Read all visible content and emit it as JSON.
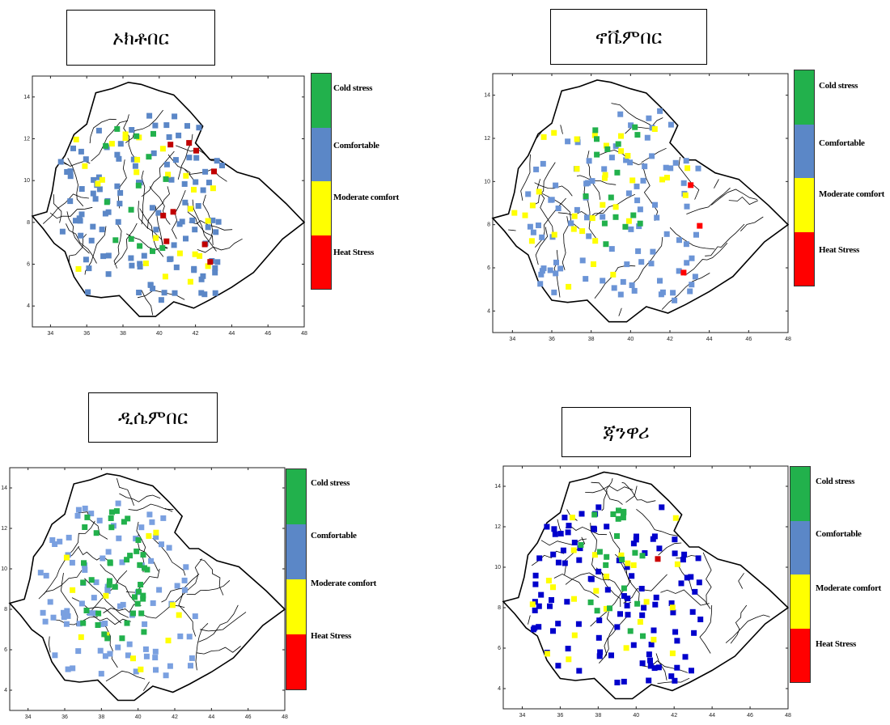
{
  "legend": {
    "items": [
      {
        "label": "Cold stress",
        "color": "#22b14c"
      },
      {
        "label": "Comfortable",
        "color": "#5b87c7"
      },
      {
        "label": "Moderate comfort",
        "color": "#ffff00"
      },
      {
        "label": "Heat Stress",
        "color": "#ff0000"
      }
    ]
  },
  "panels": [
    {
      "title": "ኦክቶበር",
      "stations": {
        "cold": 14,
        "comfortable": 110,
        "moderate": 26,
        "heat": 9,
        "heat_color": "#c00000",
        "comfortable_color": "#5b87c7"
      }
    },
    {
      "title": "ኖቬምበር",
      "stations": {
        "cold": 16,
        "comfortable": 95,
        "moderate": 34,
        "heat": 3,
        "heat_color": "#ff0000",
        "comfortable_color": "#6b94d6"
      }
    },
    {
      "title": "ዲሴምበር",
      "stations": {
        "cold": 42,
        "comfortable": 88,
        "moderate": 12,
        "heat": 0,
        "heat_color": "#ff0000",
        "comfortable_color": "#7aa0e0"
      }
    },
    {
      "title": "ጃንዋሪ",
      "stations": {
        "cold": 22,
        "comfortable": 105,
        "moderate": 24,
        "heat": 1,
        "heat_color": "#cc0000",
        "comfortable_color": "#0000cc"
      }
    }
  ],
  "axes": {
    "x_ticks": [
      "34",
      "36",
      "38",
      "40",
      "42",
      "44",
      "46",
      "48"
    ],
    "y_ticks": [
      "4",
      "6",
      "8",
      "10",
      "12",
      "14"
    ]
  }
}
